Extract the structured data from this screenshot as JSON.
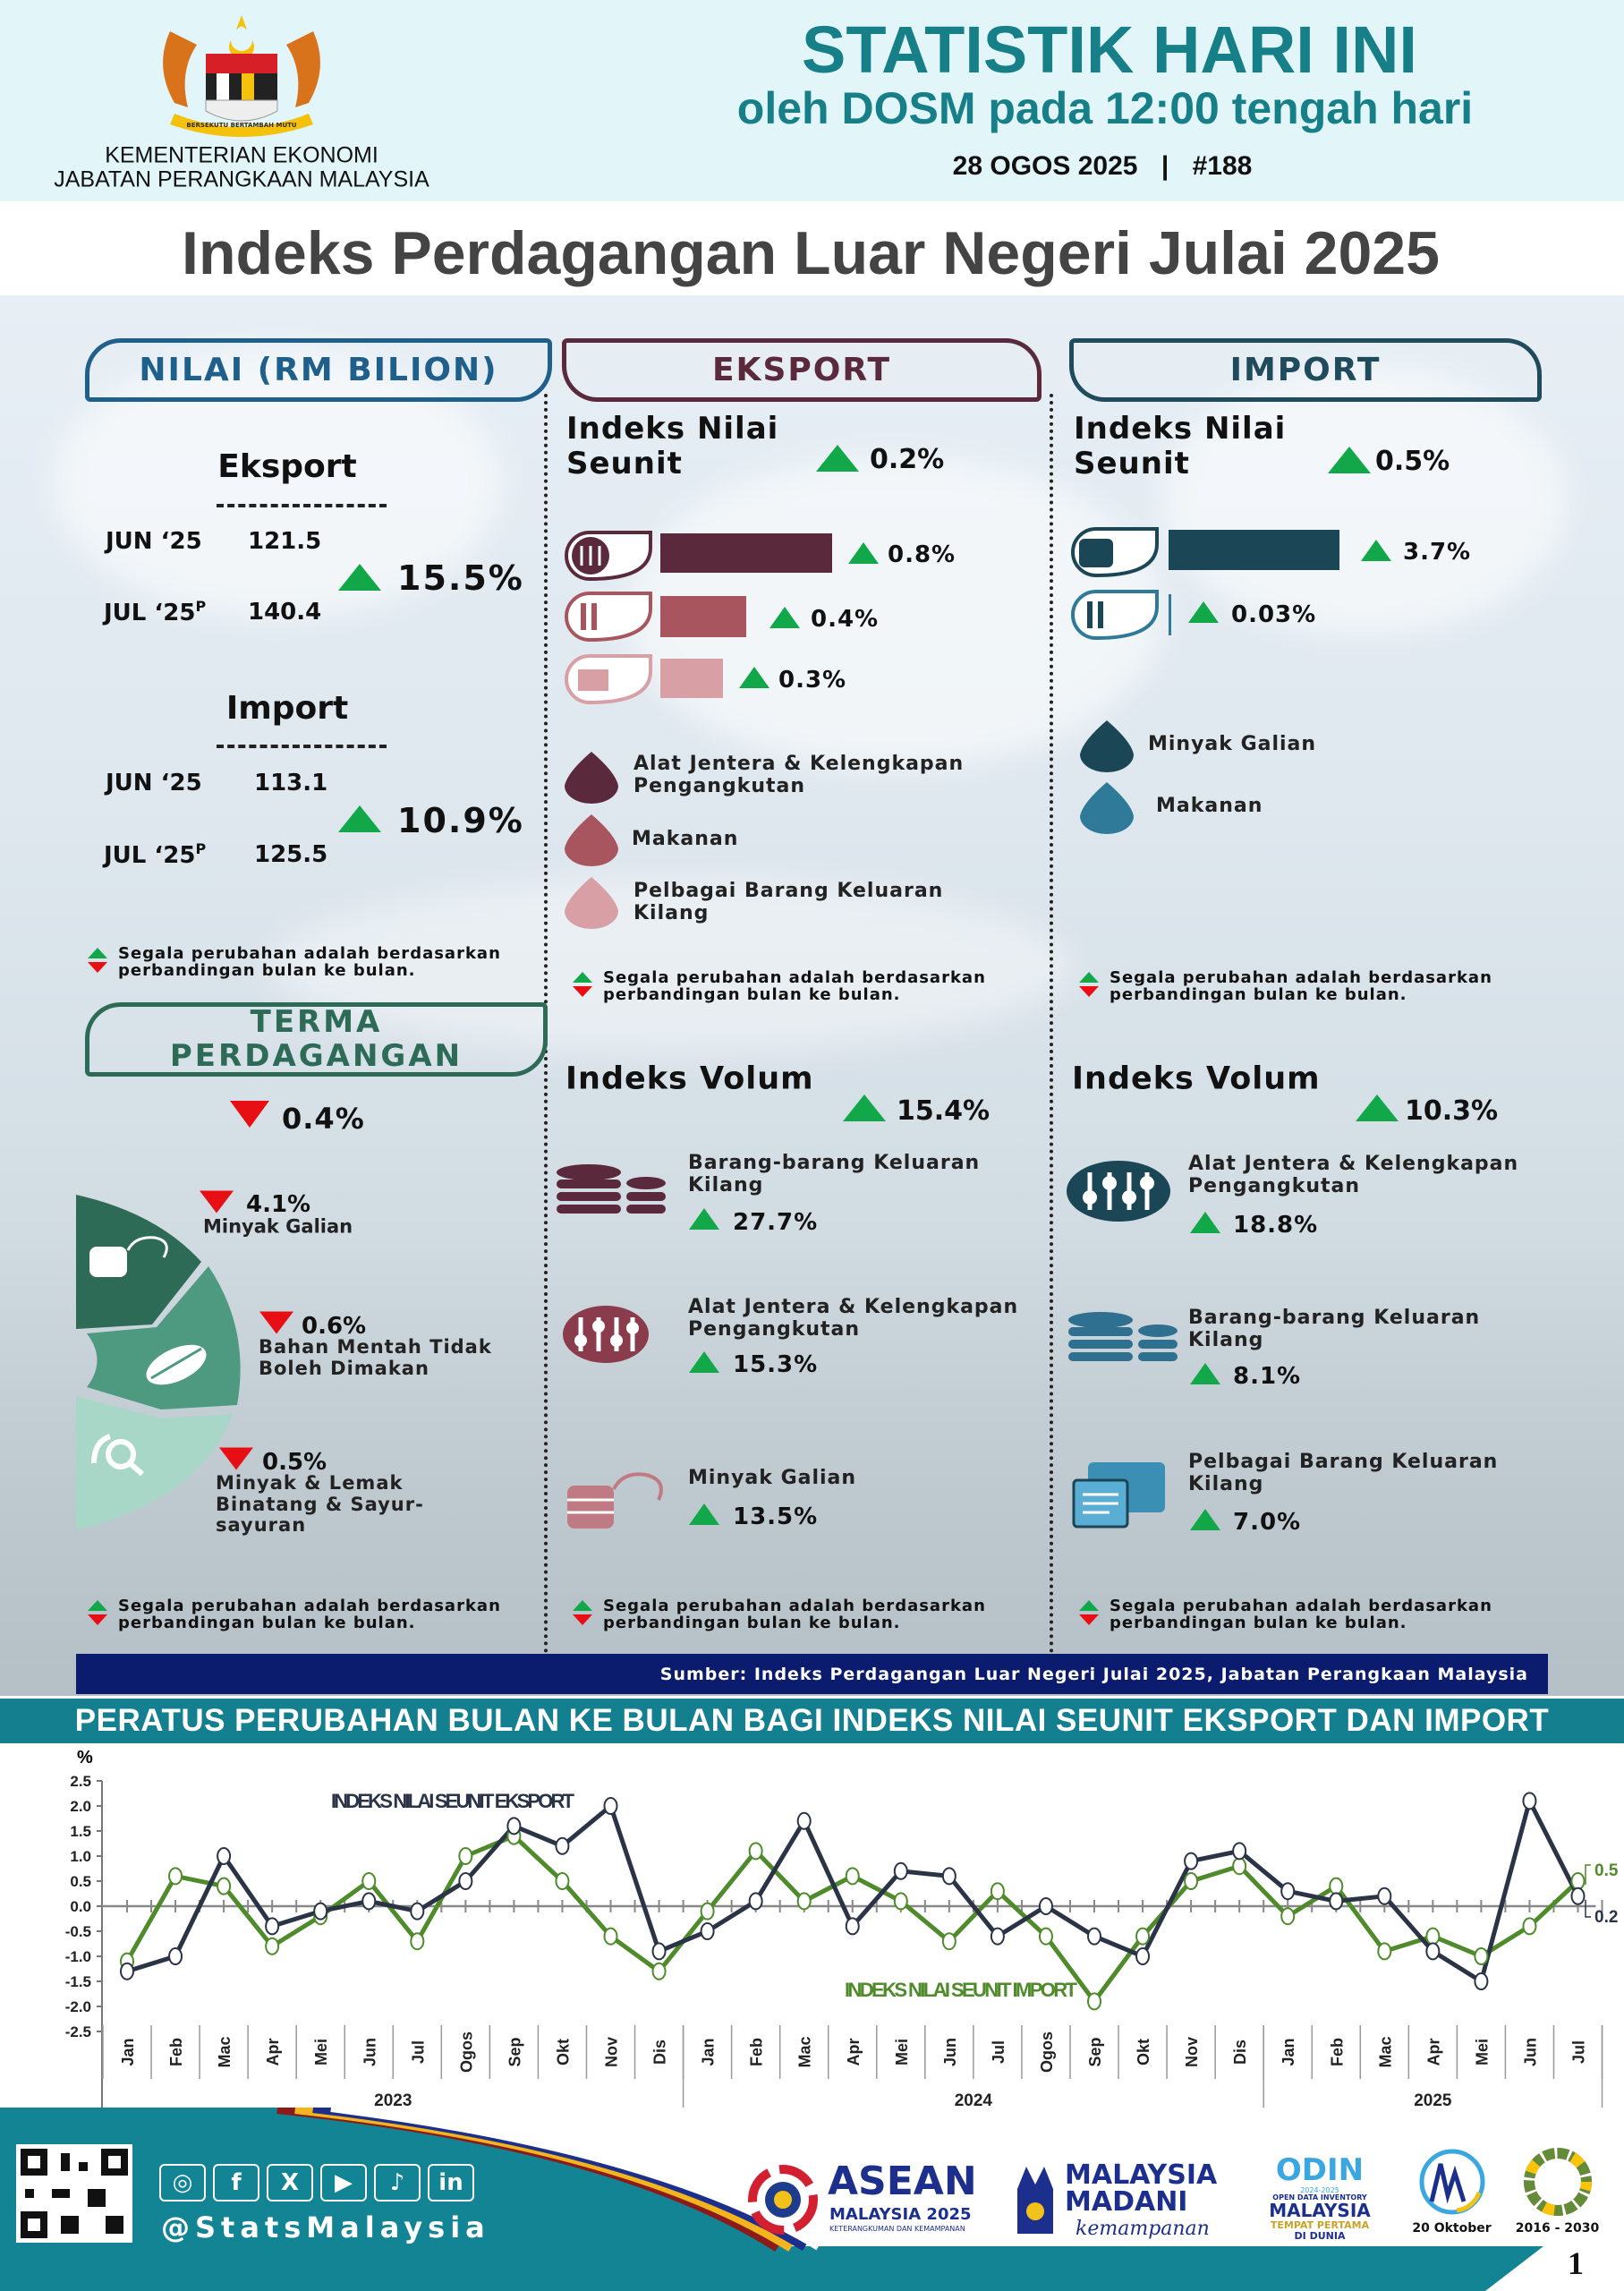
{
  "header": {
    "ministry": "KEMENTERIAN EKONOMI",
    "department": "JABATAN PERANGKAAN MALAYSIA",
    "title": "STATISTIK HARI INI",
    "subtitle": "oleh DOSM pada 12:00 tengah hari",
    "date": "28 OGOS 2025",
    "separator": "|",
    "issue": "#188",
    "coat_of_arms_motto": "BERSEKUTU BERTAMBAH MUTU"
  },
  "page_title": "Indeks Perdagangan Luar Negeri Julai 2025",
  "colors": {
    "teal": "#167f87",
    "green_up": "#12a84a",
    "red_down": "#e80f14",
    "export": "#5a2a3c",
    "import": "#1b4656",
    "navy": "#0b1c6e",
    "series_export": "#2b3447",
    "series_import": "#4f8a2b"
  },
  "nilai": {
    "heading": "NILAI (RM BILION)",
    "eksport": {
      "label": "Eksport",
      "prev_label": "JUN ‘25",
      "prev_value": "121.5",
      "curr_label": "JUL ‘25",
      "curr_sup": "P",
      "curr_value": "140.4",
      "change": "15.5%",
      "direction": "up"
    },
    "import": {
      "label": "Import",
      "prev_label": "JUN ‘25",
      "prev_value": "113.1",
      "curr_label": "JUL ‘25",
      "curr_sup": "P",
      "curr_value": "125.5",
      "change": "10.9%",
      "direction": "up"
    },
    "note": [
      "Segala perubahan adalah berdasarkan",
      "perbandingan bulan ke bulan."
    ]
  },
  "terma": {
    "heading": [
      "TERMA",
      "PERDAGANGAN"
    ],
    "overall": "0.4%",
    "items": [
      {
        "value": "4.1%",
        "label": [
          "Minyak Galian"
        ],
        "direction": "down"
      },
      {
        "value": "0.6%",
        "label": [
          "Bahan Mentah Tidak",
          "Boleh Dimakan"
        ],
        "direction": "down"
      },
      {
        "value": "0.5%",
        "label": [
          "Minyak & Lemak",
          "Binatang & Sayur-",
          "sayuran"
        ],
        "direction": "down"
      }
    ],
    "note": [
      "Segala perubahan adalah berdasarkan",
      "perbandingan bulan ke bulan."
    ]
  },
  "eksport": {
    "heading": "EKSPORT",
    "unit_value": {
      "title": [
        "Indeks Nilai",
        "Seunit"
      ],
      "change": "0.2%",
      "bars": [
        {
          "value": "0.8%",
          "pct": 0.8,
          "color": "#5a2a3c"
        },
        {
          "value": "0.4%",
          "pct": 0.4,
          "color": "#a8555f"
        },
        {
          "value": "0.3%",
          "pct": 0.3,
          "color": "#d8a0a5"
        }
      ],
      "legend": [
        {
          "label": [
            "Alat Jentera & Kelengkapan",
            "Pengangkutan"
          ],
          "color": "#5a2a3c"
        },
        {
          "label": [
            "Makanan"
          ],
          "color": "#a8555f"
        },
        {
          "label": [
            "Pelbagai Barang Keluaran",
            "Kilang"
          ],
          "color": "#d8a0a5"
        }
      ],
      "note": [
        "Segala perubahan adalah berdasarkan",
        "perbandingan bulan ke bulan."
      ]
    },
    "volume": {
      "title": "Indeks Volum",
      "change": "15.4%",
      "items": [
        {
          "label": [
            "Barang-barang Keluaran",
            "Kilang"
          ],
          "value": "27.7%"
        },
        {
          "label": [
            "Alat Jentera & Kelengkapan",
            "Pengangkutan"
          ],
          "value": "15.3%"
        },
        {
          "label": [
            "Minyak Galian"
          ],
          "value": "13.5%"
        }
      ],
      "note": [
        "Segala perubahan adalah berdasarkan",
        "perbandingan bulan ke bulan."
      ]
    }
  },
  "import": {
    "heading": "IMPORT",
    "unit_value": {
      "title": [
        "Indeks Nilai",
        "Seunit"
      ],
      "change": "0.5%",
      "bars": [
        {
          "value": "3.7%",
          "pct": 3.7,
          "color": "#1b4656"
        },
        {
          "value": "0.03%",
          "pct": 0.03,
          "color": "#2f7a99"
        }
      ],
      "legend": [
        {
          "label": [
            "Minyak Galian"
          ],
          "color": "#1b4656"
        },
        {
          "label": [
            "Makanan"
          ],
          "color": "#2f7a99"
        }
      ],
      "note": [
        "Segala perubahan adalah berdasarkan",
        "perbandingan bulan ke bulan."
      ]
    },
    "volume": {
      "title": "Indeks Volum",
      "change": "10.3%",
      "items": [
        {
          "label": [
            "Alat Jentera & Kelengkapan",
            "Pengangkutan"
          ],
          "value": "18.8%"
        },
        {
          "label": [
            "Barang-barang Keluaran",
            "Kilang"
          ],
          "value": "8.1%"
        },
        {
          "label": [
            "Pelbagai Barang Keluaran",
            "Kilang"
          ],
          "value": "7.0%"
        }
      ],
      "note": [
        "Segala perubahan adalah berdasarkan",
        "perbandingan bulan ke bulan."
      ]
    }
  },
  "source": "Sumber: Indeks Perdagangan Luar Negeri Julai 2025, Jabatan Perangkaan Malaysia",
  "chart_banner": "PERATUS PERUBAHAN BULAN KE BULAN BAGI INDEKS NILAI SEUNIT EKSPORT DAN IMPORT",
  "chart_data": {
    "type": "line",
    "title": "PERATUS PERUBAHAN BULAN KE BULAN BAGI INDEKS NILAI SEUNIT EKSPORT DAN IMPORT",
    "ylabel": "%",
    "ylim": [
      -2.5,
      2.5
    ],
    "yticks": [
      "2.5",
      "2.0",
      "1.5",
      "1.0",
      "0.5",
      "0.0",
      "-0.5",
      "-1.0",
      "-1.5",
      "-2.0",
      "-2.5"
    ],
    "x": [
      "Jan",
      "Feb",
      "Mac",
      "Apr",
      "Mei",
      "Jun",
      "Jul",
      "Ogos",
      "Sep",
      "Okt",
      "Nov",
      "Dis",
      "Jan",
      "Feb",
      "Mac",
      "Apr",
      "Mei",
      "Jun",
      "Jul",
      "Ogos",
      "Sep",
      "Okt",
      "Nov",
      "Dis",
      "Jan",
      "Feb",
      "Mac",
      "Apr",
      "Mei",
      "Jun",
      "Jul"
    ],
    "years": [
      {
        "label": "2023",
        "months": 12
      },
      {
        "label": "2024",
        "months": 12
      },
      {
        "label": "2025",
        "months": 7
      }
    ],
    "series": [
      {
        "name": "INDEKS NILAI SEUNIT EKSPORT",
        "color": "#2b3447",
        "end_label": "0.2",
        "values": [
          -1.3,
          -1.0,
          1.0,
          -0.4,
          -0.1,
          0.1,
          -0.1,
          0.5,
          1.6,
          1.2,
          2.0,
          -0.9,
          -0.5,
          0.1,
          1.7,
          -0.4,
          0.7,
          0.6,
          -0.6,
          0.0,
          -0.6,
          -1.0,
          0.9,
          1.1,
          0.3,
          0.1,
          0.2,
          -0.9,
          -1.5,
          2.1,
          0.2
        ]
      },
      {
        "name": "INDEKS NILAI SEUNIT IMPORT",
        "color": "#4f8a2b",
        "end_label": "0.5",
        "values": [
          -1.1,
          0.6,
          0.4,
          -0.8,
          -0.2,
          0.5,
          -0.7,
          1.0,
          1.4,
          0.5,
          -0.6,
          -1.3,
          -0.1,
          1.1,
          0.1,
          0.6,
          0.1,
          -0.7,
          0.3,
          -0.6,
          -1.9,
          -0.6,
          0.5,
          0.8,
          -0.2,
          0.4,
          -0.9,
          -0.6,
          -1.0,
          -0.4,
          0.5
        ]
      }
    ],
    "grid": false,
    "legend": "inline labels"
  },
  "footer": {
    "handle": "@StatsMalaysia",
    "social_icons": [
      "instagram-icon",
      "facebook-icon",
      "x-icon",
      "youtube-icon",
      "tiktok-icon",
      "linkedin-icon"
    ],
    "logos": {
      "asean": [
        "ASEAN",
        "MALAYSIA 2025",
        "KETERANGKUMAN DAN KEMAMPANAN"
      ],
      "madani": [
        "MALAYSIA",
        "MADANI",
        "kemampanan"
      ],
      "odin": [
        "ODIN",
        "2024-2025",
        "OPEN DATA INVENTORY",
        "MALAYSIA",
        "TEMPAT PERTAMA",
        "DI DUNIA"
      ],
      "stats_day": "20 Oktober",
      "sdg": [
        "SUSTAINABLE DEVELOPMENT GOALS",
        "2016 - 2030"
      ]
    },
    "page_number": "1"
  }
}
